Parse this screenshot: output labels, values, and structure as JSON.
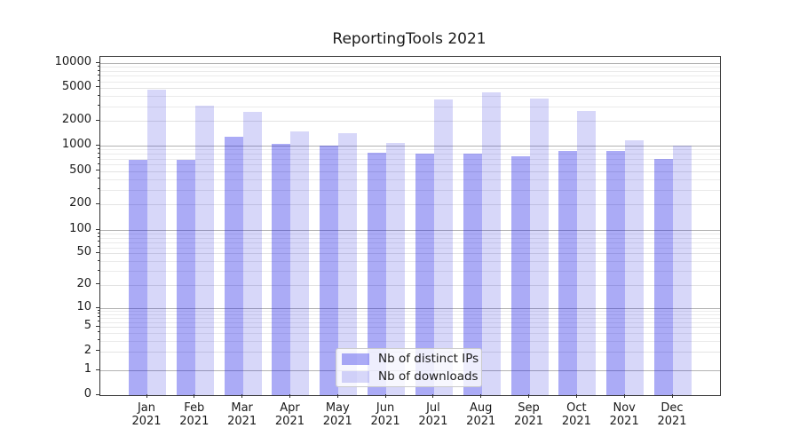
{
  "figure": {
    "title": "ReportingTools 2021"
  },
  "legend": {
    "items": [
      {
        "label": "Nb of distinct IPs"
      },
      {
        "label": "Nb of downloads"
      }
    ]
  },
  "colors": {
    "distinct_ips_hex": "#ababf6",
    "distinct_ips_fill": "rgba(10,10,230,0.34)",
    "downloads_hex": "#d8d8f9",
    "downloads_fill": "rgba(0,0,216,0.155)",
    "grid_major": "#b3b3b3",
    "grid_minor": "#e3e3e3",
    "grid_minor_faint": "#ebebeb"
  },
  "chart_data": {
    "type": "bar",
    "title": "ReportingTools 2021",
    "categories": [
      "Jan 2021",
      "Feb 2021",
      "Mar 2021",
      "Apr 2021",
      "May 2021",
      "Jun 2021",
      "Jul 2021",
      "Aug 2021",
      "Sep 2021",
      "Oct 2021",
      "Nov 2021",
      "Dec 2021"
    ],
    "series": [
      {
        "name": "Nb of distinct IPs",
        "values": [
          680,
          680,
          1280,
          1050,
          1010,
          830,
          800,
          810,
          740,
          870,
          870,
          700
        ]
      },
      {
        "name": "Nb of downloads",
        "values": [
          4800,
          3050,
          2560,
          1500,
          1430,
          1090,
          3650,
          4400,
          3700,
          2600,
          1160,
          1000
        ]
      }
    ],
    "xlabel": "",
    "ylabel": "",
    "yscale": "symlog",
    "ylim": [
      0,
      12000
    ],
    "yticks": [
      0,
      1,
      2,
      5,
      10,
      20,
      50,
      100,
      200,
      500,
      1000,
      2000,
      5000,
      10000
    ],
    "major_gridlines_at": [
      1,
      10,
      100,
      1000,
      10000
    ],
    "grid": true,
    "legend_position": "lower center"
  }
}
